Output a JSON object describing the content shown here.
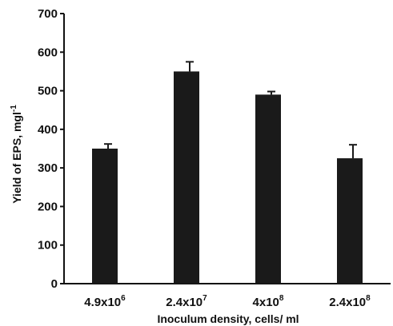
{
  "chart_data": {
    "type": "bar",
    "categories": [
      {
        "base": "4.9x10",
        "exp": "6"
      },
      {
        "base": "2.4x10",
        "exp": "7"
      },
      {
        "base": "4x10",
        "exp": "8"
      },
      {
        "base": "2.4x10",
        "exp": "8"
      }
    ],
    "values": [
      350,
      550,
      490,
      325
    ],
    "error": [
      12,
      25,
      8,
      35
    ],
    "xlabel": "Inoculum density, cells/ ml",
    "ylabel": {
      "base": "Yield of EPS, mgl",
      "exp": "-1"
    },
    "ylim": [
      0,
      700
    ],
    "yticks": [
      0,
      100,
      200,
      300,
      400,
      500,
      600,
      700
    ],
    "grid": false,
    "colors": {
      "bar": "#1a1a1a",
      "axis": "#111111"
    }
  }
}
